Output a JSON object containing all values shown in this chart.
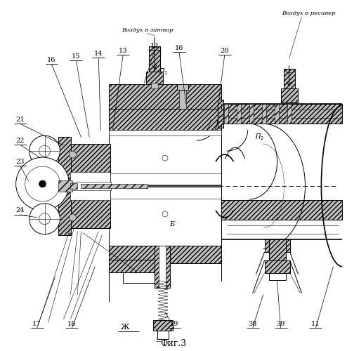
{
  "title": "Фиг.3",
  "bg_color": "#ffffff",
  "fig_width": 4.94,
  "fig_height": 5.0,
  "top_label_left": "Воздух в затвор",
  "top_label_right": "Воздух в ресивер",
  "lw_thin": 0.4,
  "lw_med": 0.7,
  "lw_thick": 1.2,
  "hatch_fc": "#c0c0c0",
  "gray_fill": "#d8d8d8"
}
